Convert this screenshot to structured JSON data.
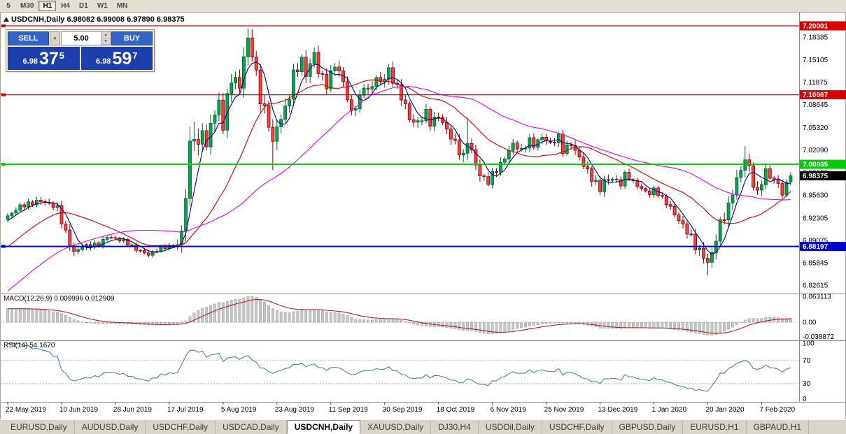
{
  "app": {
    "background": "#ece9d8"
  },
  "toolbar": {
    "timeframes": [
      {
        "label": "5",
        "active": false
      },
      {
        "label": "M30",
        "active": false
      },
      {
        "label": "H1",
        "active": true
      },
      {
        "label": "H4",
        "active": false
      },
      {
        "label": "D1",
        "active": false
      },
      {
        "label": "W1",
        "active": false
      },
      {
        "label": "MN",
        "active": false
      }
    ]
  },
  "chart_header": {
    "text": "USDCNH,Daily  6.98082 6.99008 6.97890 6.98375"
  },
  "trade_panel": {
    "sell_label": "SELL",
    "buy_label": "BUY",
    "volume": "5.00",
    "sell_price": {
      "small": "6.98",
      "big": "37",
      "sup": "5"
    },
    "buy_price": {
      "small": "6.98",
      "big": "59",
      "sup": "7"
    }
  },
  "price_axis": {
    "labels": [
      "7.18385",
      "7.15105",
      "7.11875",
      "7.08645",
      "7.05320",
      "7.02090",
      "6.98860",
      "6.95630",
      "6.92305",
      "6.89075",
      "6.85845",
      "6.82615"
    ]
  },
  "time_axis": {
    "labels": [
      "22 May 2019",
      "10 Jun 2019",
      "28 Jun 2019",
      "17 Jul 2019",
      "5 Aug 2019",
      "23 Aug 2019",
      "11 Sep 2019",
      "30 Sep 2019",
      "18 Oct 2019",
      "6 Nov 2019",
      "25 Nov 2019",
      "13 Dec 2019",
      "1 Jan 2020",
      "20 Jan 2020",
      "7 Feb 2020"
    ],
    "tick_days": [
      0,
      13,
      26,
      39,
      52,
      65,
      78,
      91,
      104,
      117,
      130,
      143,
      156,
      169,
      182
    ]
  },
  "indicators": {
    "macd": {
      "label": "MACD(12,26,9) 0.009996 0.012909",
      "axis_labels": [
        "0.063113",
        "0.00",
        "-0.038872"
      ],
      "range": [
        0.063113,
        -0.038872
      ],
      "histogram_color": "#c6c6c6",
      "signal_color": "#b22222"
    },
    "rsi": {
      "label": "RSI(14) 54.1670",
      "axis_labels": [
        "100",
        "70",
        "30",
        "0"
      ],
      "levels": [
        70,
        30
      ],
      "period": 14,
      "line_color": "#4682b4"
    }
  },
  "window_tabs": [
    {
      "label": "EURUSD,Daily",
      "active": false
    },
    {
      "label": "AUDUSD,Daily",
      "active": false
    },
    {
      "label": "USDCHF,Daily",
      "active": false
    },
    {
      "label": "USDCAD,Daily",
      "active": false
    },
    {
      "label": "USDCNH,Daily",
      "active": true
    },
    {
      "label": "XAUUSD,Daily",
      "active": false
    },
    {
      "label": "DJ30,H4",
      "active": false
    },
    {
      "label": "USDOil,Daily",
      "active": false
    },
    {
      "label": "USDCHF,Daily",
      "active": false
    },
    {
      "label": "GBPUSD,Daily",
      "active": false
    },
    {
      "label": "EURUSD,H1",
      "active": false
    },
    {
      "label": "GBPAUD,H1",
      "active": false
    }
  ],
  "chart_data": {
    "type": "candlestick",
    "symbol": "USDCNH",
    "timeframe": "Daily",
    "ohlc": {
      "open": "6.98082",
      "high": "6.99008",
      "low": "6.97890",
      "close": "6.98375"
    },
    "last_close": 6.98375,
    "days": 190,
    "y_range": [
      6.82615,
      7.20001
    ],
    "up_color": "#00a651",
    "down_color": "#ff3d3d",
    "horizontal_levels": [
      {
        "price": 7.20001,
        "label": "7.20001",
        "color": "#dd0000",
        "width": 1.2
      },
      {
        "price": 7.10067,
        "label": "7.10067",
        "color": "#dd0000",
        "width": 1.2
      },
      {
        "price": 7.00035,
        "label": "7.00035",
        "color": "#00cc00",
        "width": 2
      },
      {
        "price": 6.88197,
        "label": "6.88197",
        "color": "#0000cc",
        "width": 2
      }
    ],
    "current_price": {
      "price": 6.98375,
      "label": "6.98375",
      "tag_color": "#000000"
    },
    "moving_averages": [
      {
        "period": 5,
        "color": "#00008b"
      },
      {
        "period": 20,
        "color": "#d40000"
      },
      {
        "period": 45,
        "color": "#ee00ee"
      }
    ],
    "prehistory": {
      "start": 6.7,
      "end": 6.925,
      "bars": 45
    },
    "close_anchors": [
      [
        0,
        6.925
      ],
      [
        3,
        6.94
      ],
      [
        8,
        6.948
      ],
      [
        12,
        6.938
      ],
      [
        14,
        6.9
      ],
      [
        16,
        6.873
      ],
      [
        18,
        6.882
      ],
      [
        22,
        6.885
      ],
      [
        24,
        6.896
      ],
      [
        28,
        6.89
      ],
      [
        31,
        6.878
      ],
      [
        34,
        6.87
      ],
      [
        37,
        6.88
      ],
      [
        41,
        6.884
      ],
      [
        42,
        6.902
      ],
      [
        43,
        6.958
      ],
      [
        44,
        7.022
      ],
      [
        45,
        7.048
      ],
      [
        46,
        7.02
      ],
      [
        47,
        7.055
      ],
      [
        48,
        7.022
      ],
      [
        49,
        7.06
      ],
      [
        51,
        7.088
      ],
      [
        52,
        7.056
      ],
      [
        53,
        7.095
      ],
      [
        54,
        7.125
      ],
      [
        56,
        7.114
      ],
      [
        57,
        7.155
      ],
      [
        58,
        7.18
      ],
      [
        59,
        7.16
      ],
      [
        60,
        7.13
      ],
      [
        61,
        7.095
      ],
      [
        63,
        7.06
      ],
      [
        64,
        7.03
      ],
      [
        65,
        7.055
      ],
      [
        67,
        7.08
      ],
      [
        68,
        7.1
      ],
      [
        69,
        7.13
      ],
      [
        71,
        7.15
      ],
      [
        72,
        7.13
      ],
      [
        73,
        7.145
      ],
      [
        74,
        7.16
      ],
      [
        75,
        7.135
      ],
      [
        77,
        7.115
      ],
      [
        78,
        7.13
      ],
      [
        79,
        7.145
      ],
      [
        81,
        7.12
      ],
      [
        82,
        7.095
      ],
      [
        83,
        7.075
      ],
      [
        85,
        7.095
      ],
      [
        86,
        7.115
      ],
      [
        87,
        7.105
      ],
      [
        89,
        7.125
      ],
      [
        90,
        7.118
      ],
      [
        92,
        7.135
      ],
      [
        94,
        7.11
      ],
      [
        96,
        7.085
      ],
      [
        97,
        7.065
      ],
      [
        99,
        7.06
      ],
      [
        101,
        7.075
      ],
      [
        102,
        7.06
      ],
      [
        104,
        7.07
      ],
      [
        106,
        7.05
      ],
      [
        108,
        7.03
      ],
      [
        110,
        7.01
      ],
      [
        111,
        7.036
      ],
      [
        113,
        7.0
      ],
      [
        114,
        6.985
      ],
      [
        116,
        6.975
      ],
      [
        117,
        6.986
      ],
      [
        119,
        7.0
      ],
      [
        121,
        7.02
      ],
      [
        122,
        7.03
      ],
      [
        124,
        7.02
      ],
      [
        126,
        7.035
      ],
      [
        127,
        7.028
      ],
      [
        129,
        7.04
      ],
      [
        131,
        7.03
      ],
      [
        133,
        7.04
      ],
      [
        134,
        7.02
      ],
      [
        136,
        7.03
      ],
      [
        138,
        7.01
      ],
      [
        139,
        7.0
      ],
      [
        141,
        6.98
      ],
      [
        143,
        6.965
      ],
      [
        144,
        6.976
      ],
      [
        146,
        6.98
      ],
      [
        148,
        6.972
      ],
      [
        149,
        6.986
      ],
      [
        151,
        6.975
      ],
      [
        153,
        6.965
      ],
      [
        155,
        6.958
      ],
      [
        156,
        6.964
      ],
      [
        158,
        6.952
      ],
      [
        160,
        6.938
      ],
      [
        161,
        6.928
      ],
      [
        163,
        6.912
      ],
      [
        165,
        6.895
      ],
      [
        166,
        6.882
      ],
      [
        168,
        6.868
      ],
      [
        169,
        6.858
      ],
      [
        170,
        6.872
      ],
      [
        171,
        6.893
      ],
      [
        172,
        6.915
      ],
      [
        174,
        6.938
      ],
      [
        175,
        6.962
      ],
      [
        177,
        6.993
      ],
      [
        178,
        7.008
      ],
      [
        179,
        6.995
      ],
      [
        180,
        6.972
      ],
      [
        181,
        6.958
      ],
      [
        182,
        6.976
      ],
      [
        183,
        6.99
      ],
      [
        184,
        6.983
      ],
      [
        186,
        6.972
      ],
      [
        187,
        6.958
      ],
      [
        188,
        6.972
      ],
      [
        189,
        6.984
      ]
    ],
    "volatility_anchors": [
      [
        0,
        0.005
      ],
      [
        12,
        0.006
      ],
      [
        14,
        0.011
      ],
      [
        17,
        0.006
      ],
      [
        24,
        0.004
      ],
      [
        40,
        0.004
      ],
      [
        42,
        0.013
      ],
      [
        44,
        0.024
      ],
      [
        47,
        0.015
      ],
      [
        52,
        0.013
      ],
      [
        57,
        0.016
      ],
      [
        60,
        0.013
      ],
      [
        63,
        0.015
      ],
      [
        68,
        0.012
      ],
      [
        75,
        0.011
      ],
      [
        85,
        0.009
      ],
      [
        95,
        0.01
      ],
      [
        105,
        0.008
      ],
      [
        111,
        0.013
      ],
      [
        115,
        0.008
      ],
      [
        125,
        0.007
      ],
      [
        131,
        0.007
      ],
      [
        139,
        0.008
      ],
      [
        143,
        0.009
      ],
      [
        150,
        0.005
      ],
      [
        157,
        0.005
      ],
      [
        162,
        0.007
      ],
      [
        168,
        0.01
      ],
      [
        171,
        0.011
      ],
      [
        175,
        0.013
      ],
      [
        179,
        0.011
      ],
      [
        184,
        0.008
      ],
      [
        189,
        0.006
      ]
    ],
    "spikes": [
      [
        45,
        "high",
        7.062
      ],
      [
        58,
        "high",
        7.1966
      ],
      [
        64,
        "low",
        6.992
      ],
      [
        111,
        "high",
        7.068
      ],
      [
        169,
        "low",
        6.8407
      ],
      [
        178,
        "high",
        7.0265
      ]
    ]
  }
}
